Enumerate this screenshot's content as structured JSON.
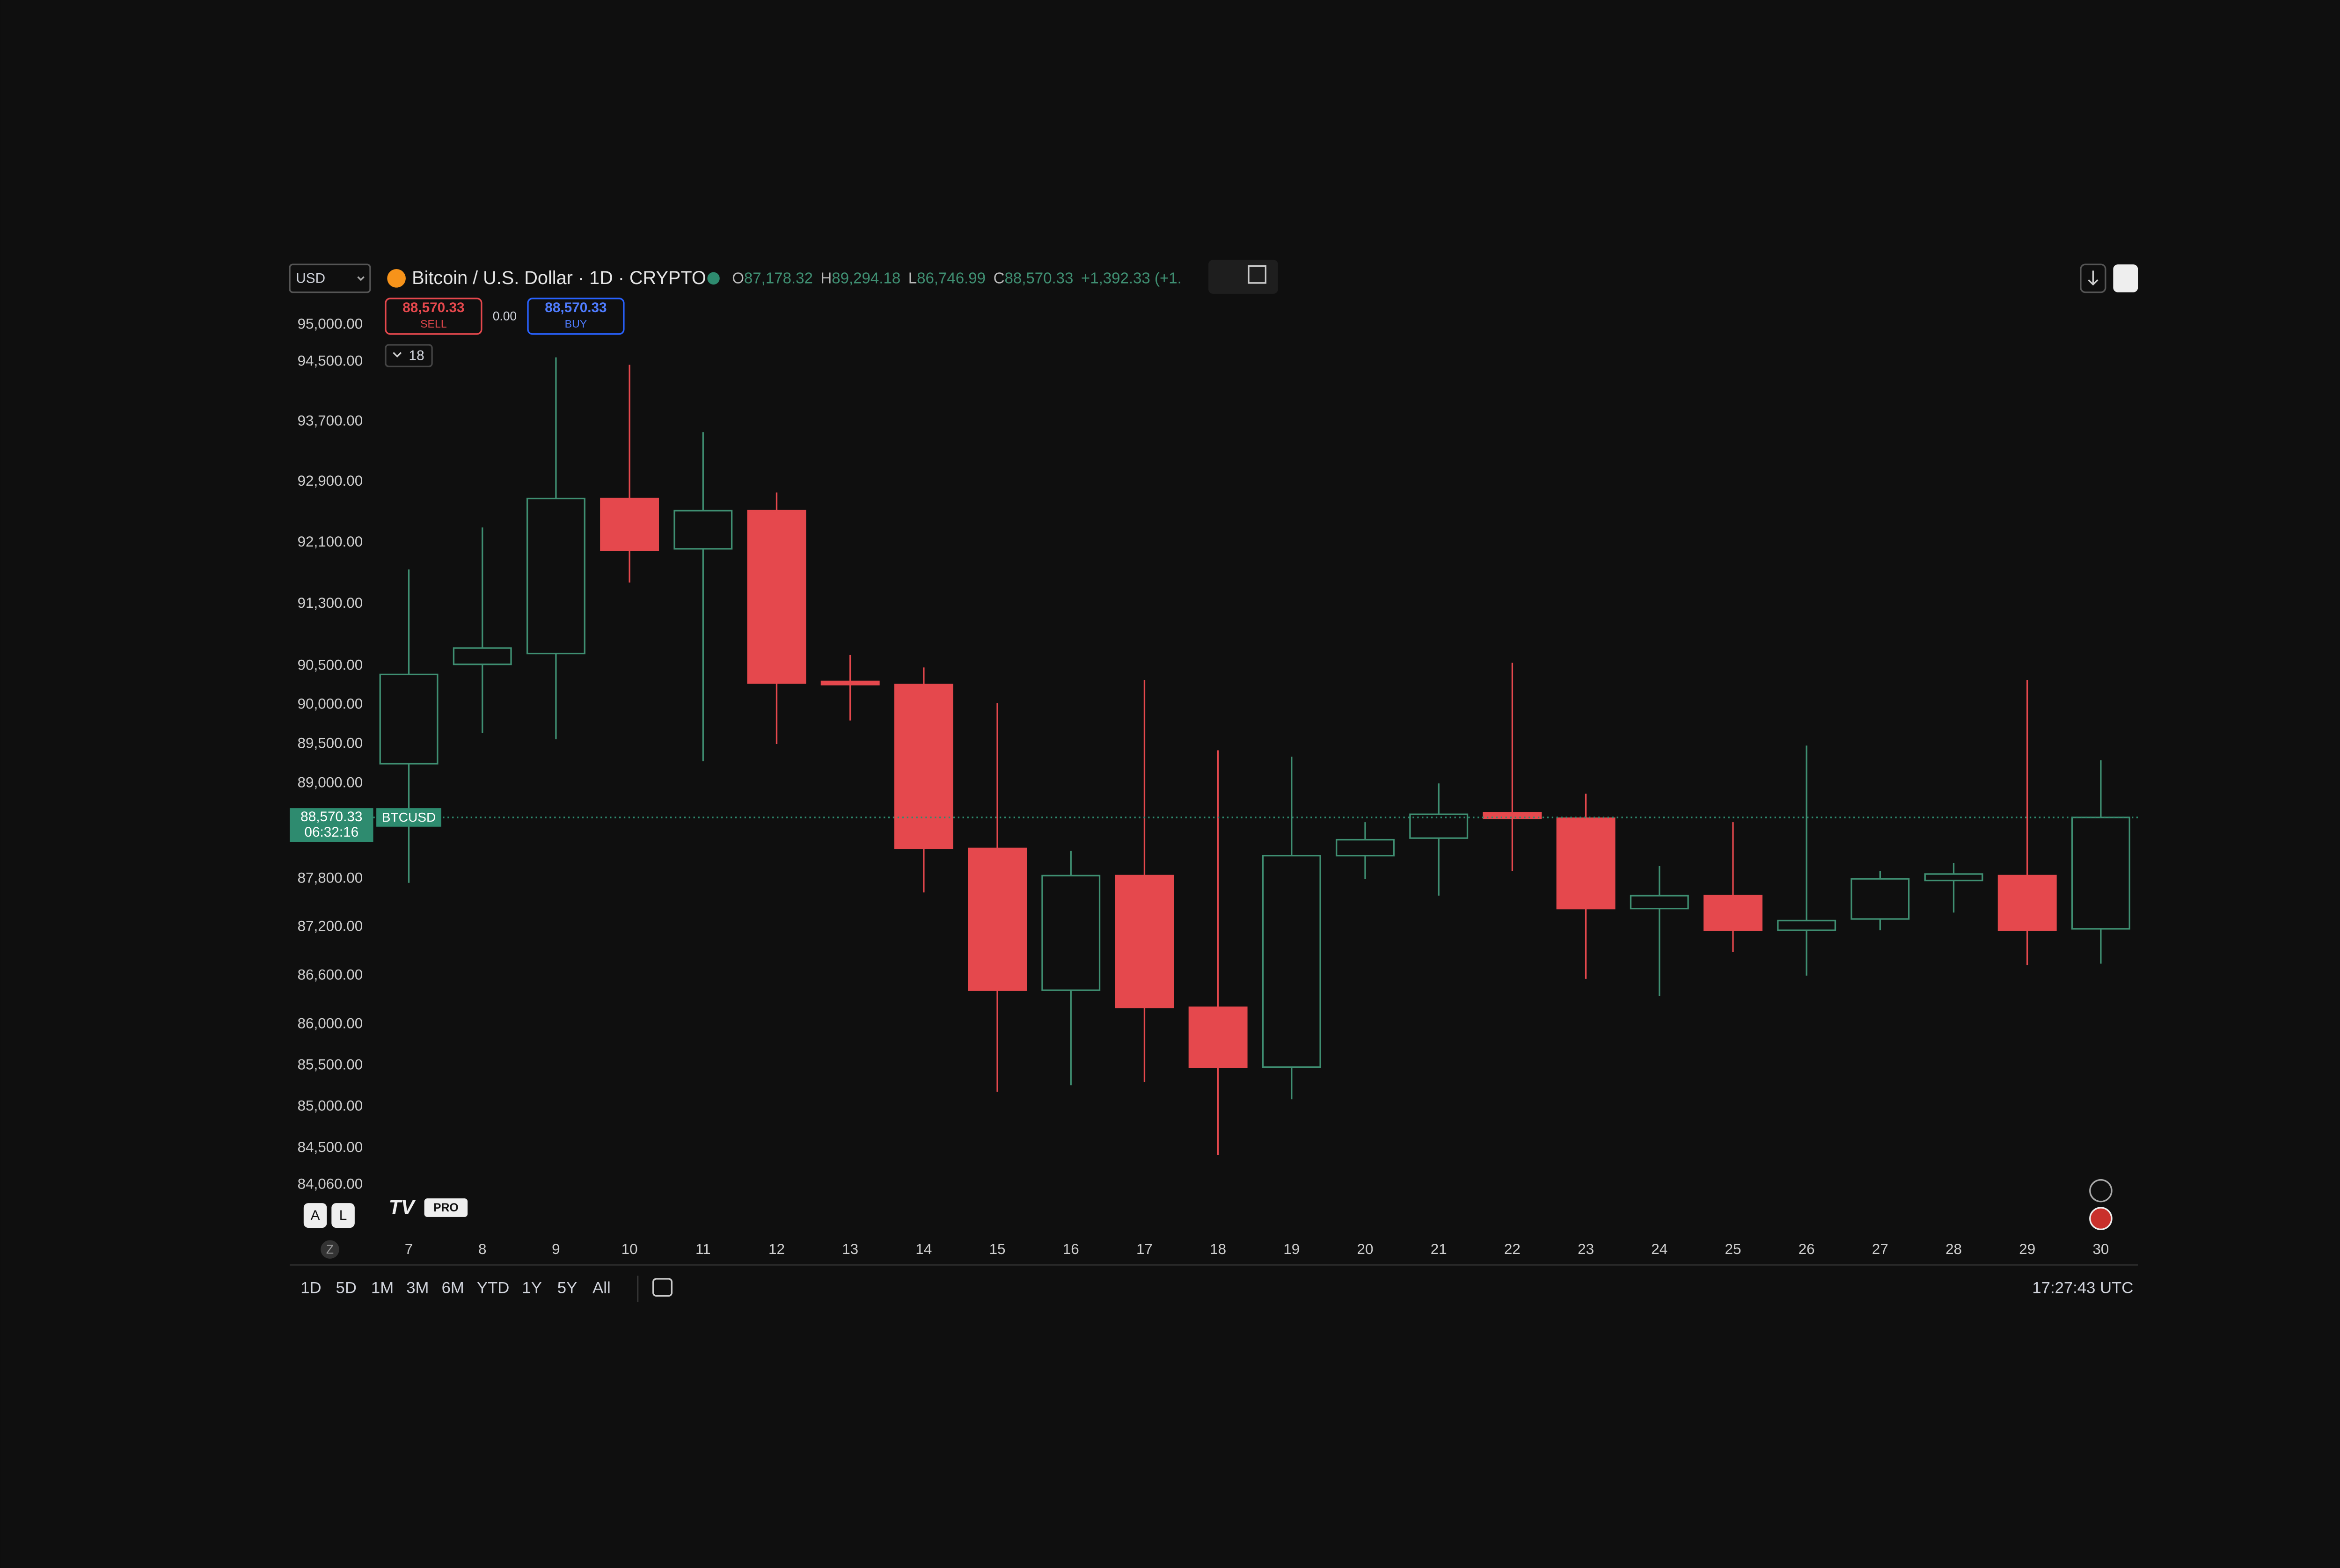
{
  "toolbar": {
    "currency": "USD",
    "symbol_title": "Bitcoin / U.S. Dollar · 1D · CRYPTO",
    "ohlc": [
      {
        "key": "O",
        "value": "87,178.32"
      },
      {
        "key": "H",
        "value": "89,294.18"
      },
      {
        "key": "L",
        "value": "86,746.99"
      },
      {
        "key": "C",
        "value": "88,570.33"
      }
    ],
    "change": "+1,392.33 (+1.",
    "sell": {
      "price": "88,570.33",
      "label": "SELL"
    },
    "spread": "0.00",
    "buy": {
      "price": "88,570.33",
      "label": "BUY"
    },
    "indicators_count": "18"
  },
  "chart_data": {
    "type": "candlestick",
    "log_scale": true,
    "grid": false,
    "up_color": "#3f8f72",
    "down_color": "#e5484d",
    "categories": [
      "7",
      "8",
      "9",
      "10",
      "11",
      "12",
      "13",
      "14",
      "15",
      "16",
      "17",
      "18",
      "19",
      "20",
      "21",
      "22",
      "23",
      "24",
      "25",
      "26",
      "27",
      "28",
      "29",
      "30"
    ],
    "open": [
      89250,
      90520,
      90660,
      92680,
      92020,
      92520,
      90300,
      90260,
      88180,
      86420,
      87840,
      86210,
      85480,
      88090,
      88310,
      88630,
      88560,
      87430,
      87590,
      87160,
      87300,
      87780,
      87840,
      87178.32
    ],
    "high": [
      91750,
      92300,
      94560,
      94460,
      93560,
      92760,
      90640,
      90480,
      90020,
      88150,
      90320,
      89420,
      89340,
      88510,
      89000,
      90540,
      88870,
      87960,
      88510,
      89480,
      87900,
      88000,
      90320,
      89294.18
    ],
    "low": [
      87750,
      89640,
      89560,
      91580,
      89280,
      89500,
      89800,
      87630,
      85180,
      85260,
      85300,
      84420,
      85090,
      87800,
      87590,
      87900,
      86560,
      86350,
      86890,
      86600,
      87160,
      87380,
      86730,
      86746.99
    ],
    "close": [
      90390,
      90730,
      92680,
      92000,
      92520,
      90280,
      90260,
      88180,
      86420,
      87840,
      86210,
      85480,
      88090,
      88290,
      88610,
      88560,
      87430,
      87590,
      87160,
      87280,
      87800,
      87860,
      87160,
      88570.33
    ],
    "ylim": [
      83530,
      95314
    ],
    "yticks": [
      {
        "value": 95000,
        "label": "95,000.00"
      },
      {
        "value": 94500,
        "label": "94,500.00"
      },
      {
        "value": 93700,
        "label": "93,700.00"
      },
      {
        "value": 92900,
        "label": "92,900.00"
      },
      {
        "value": 92100,
        "label": "92,100.00"
      },
      {
        "value": 91300,
        "label": "91,300.00"
      },
      {
        "value": 90500,
        "label": "90,500.00"
      },
      {
        "value": 90000,
        "label": "90,000.00"
      },
      {
        "value": 89500,
        "label": "89,500.00"
      },
      {
        "value": 89000,
        "label": "89,000.00"
      },
      {
        "value": 87800,
        "label": "87,800.00"
      },
      {
        "value": 87200,
        "label": "87,200.00"
      },
      {
        "value": 86600,
        "label": "86,600.00"
      },
      {
        "value": 86000,
        "label": "86,000.00"
      },
      {
        "value": 85500,
        "label": "85,500.00"
      },
      {
        "value": 85000,
        "label": "85,000.00"
      },
      {
        "value": 84500,
        "label": "84,500.00"
      },
      {
        "value": 84060,
        "label": "84,060.00"
      }
    ],
    "last_price": {
      "value": 88570.33,
      "label": "88,570.33"
    },
    "countdown": "06:32:16",
    "symbol": "BTCUSD"
  },
  "badges": [
    "A",
    "L"
  ],
  "logo": "PRO",
  "timezone_button": "Z",
  "footer": {
    "ranges": [
      "1D",
      "5D",
      "1M",
      "3M",
      "6M",
      "YTD",
      "1Y",
      "5Y",
      "All"
    ],
    "clock": "17:27:43 UTC"
  }
}
